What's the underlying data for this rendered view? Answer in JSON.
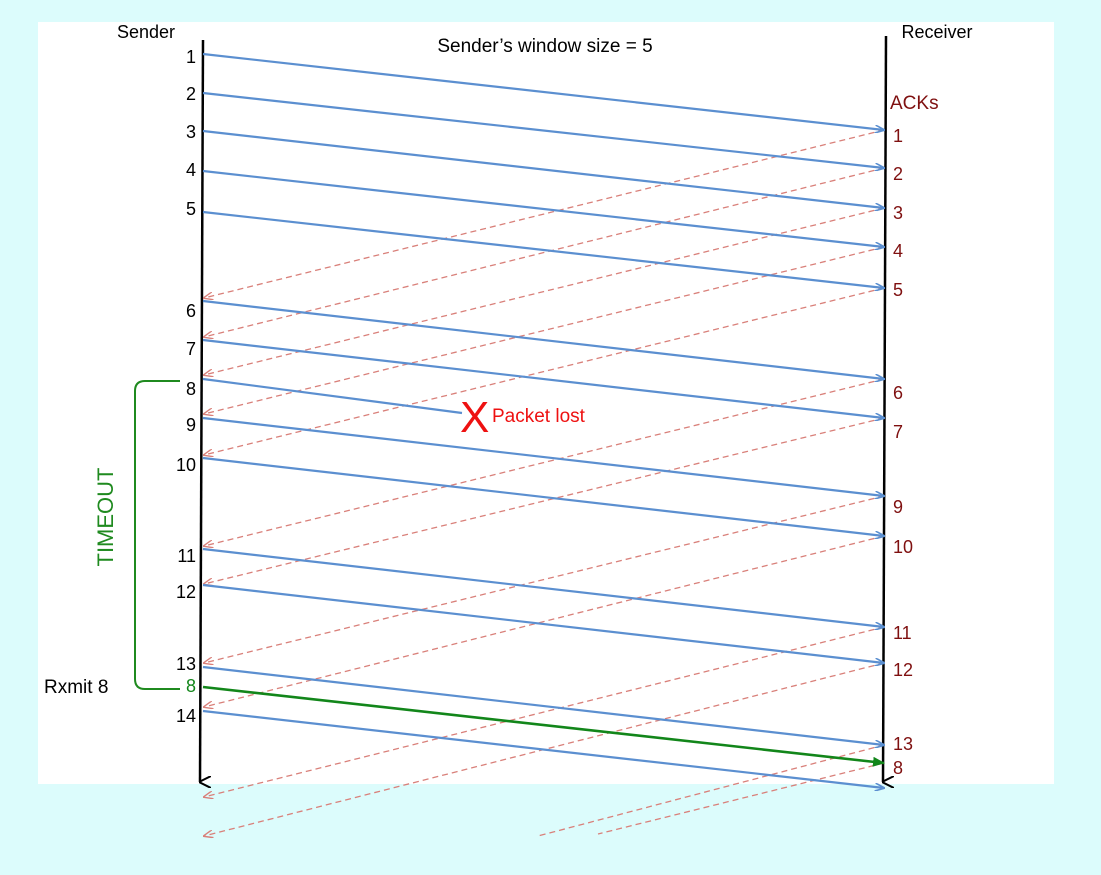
{
  "title": "Sender’s  window size = 5",
  "sender_label": "Sender",
  "receiver_label": "Receiver",
  "acks_label": "ACKs",
  "timeout_label": "TIMEOUT",
  "rxmit_label": "Rxmit 8",
  "lost_mark": "X",
  "lost_label": "Packet lost",
  "colors": {
    "data": "#5b8fd0",
    "ack": "#d9807a",
    "retransmit": "#12861a",
    "ack_text": "#7f1010",
    "lost": "#ee1111",
    "timeout": "#1f8a1f"
  },
  "packets": [
    "1",
    "2",
    "3",
    "4",
    "5",
    "6",
    "7",
    "8",
    "9",
    "10",
    "11",
    "12",
    "13",
    "8",
    "14"
  ],
  "retransmitted_packet": "8",
  "lost_packet": "8",
  "acks": [
    "1",
    "2",
    "3",
    "4",
    "5",
    "6",
    "7",
    "9",
    "10",
    "11",
    "12",
    "13",
    "8"
  ]
}
